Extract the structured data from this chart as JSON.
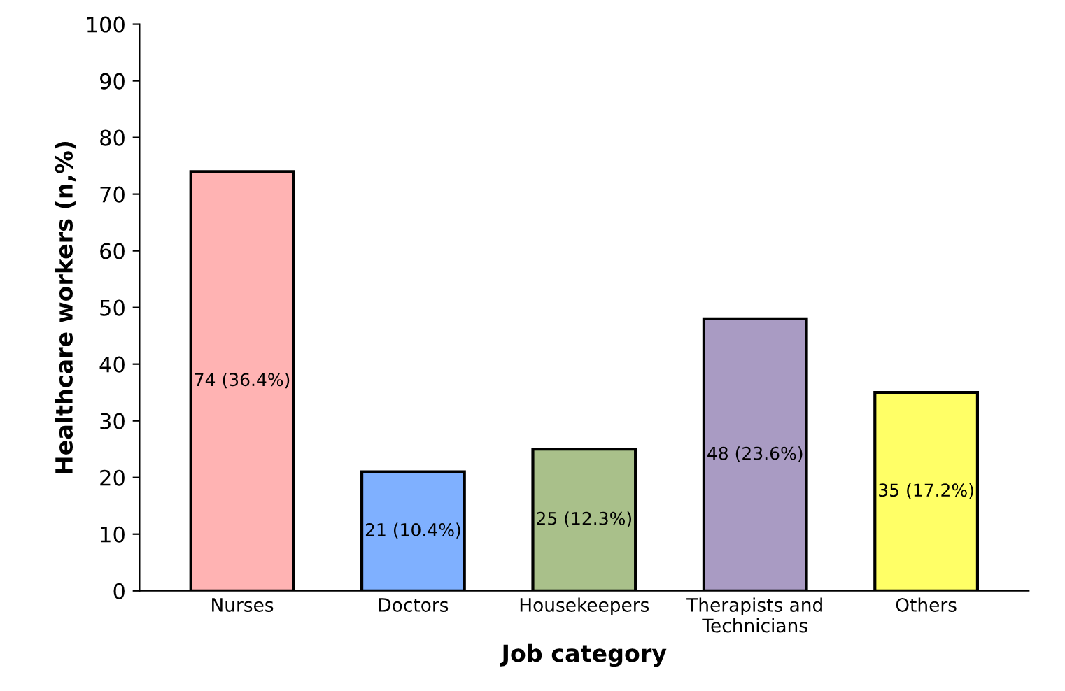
{
  "chart_data": {
    "type": "bar",
    "xlabel": "Job category",
    "ylabel": "Healthcare workers (n,%)",
    "categories": [
      "Nurses",
      "Doctors",
      "Housekeepers",
      "Therapists and\nTechnicians",
      "Others"
    ],
    "values": [
      74,
      21,
      25,
      48,
      35
    ],
    "colors": [
      "#ffb3b3",
      "#7fb0ff",
      "#a9c08a",
      "#a99bc3",
      "#ffff66"
    ],
    "value_labels": [
      "74 (36.4%)",
      "21 (10.4%)",
      "25 (12.3%)",
      "48 (23.6%)",
      "35 (17.2%)"
    ],
    "ylim": [
      0,
      100
    ],
    "yticks": [
      0,
      10,
      20,
      30,
      40,
      50,
      60,
      70,
      80,
      90,
      100
    ],
    "grid": false,
    "legend": false
  }
}
